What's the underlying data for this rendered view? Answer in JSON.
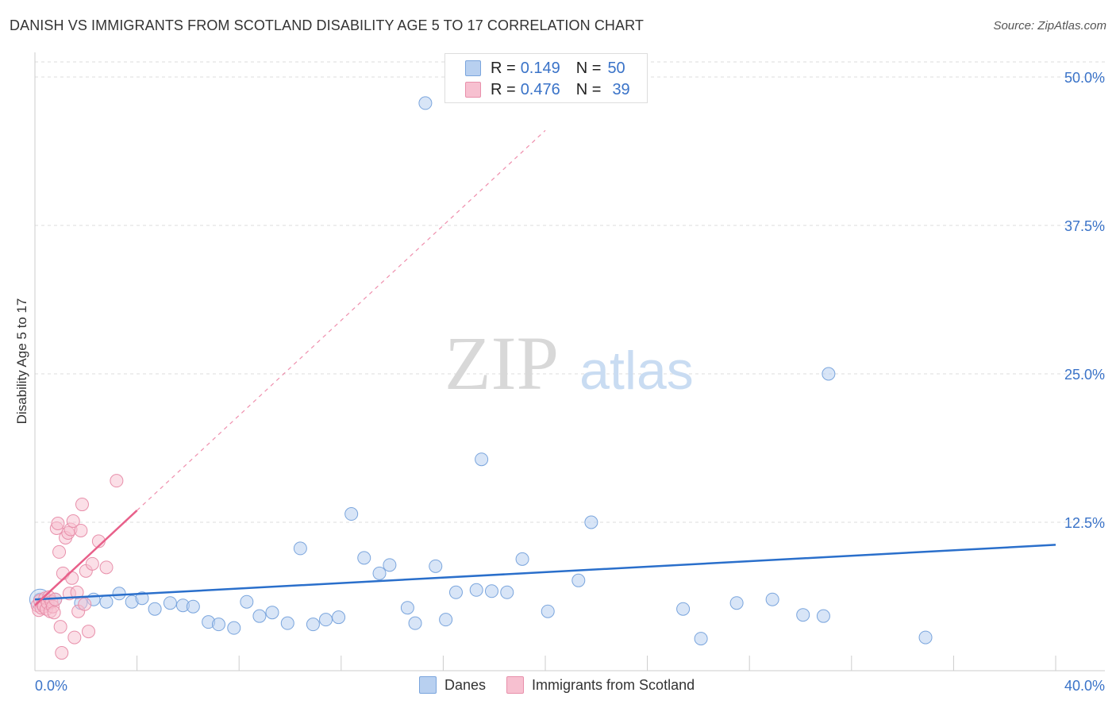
{
  "header": {
    "title": "DANISH VS IMMIGRANTS FROM SCOTLAND DISABILITY AGE 5 TO 17 CORRELATION CHART",
    "source": "Source: ZipAtlas.com"
  },
  "watermark": {
    "part1": "ZIP",
    "part2": "atlas"
  },
  "legend_top": {
    "rows": [
      {
        "r_label": "R = ",
        "r_value": "0.149",
        "n_label": "N = ",
        "n_value": "50"
      },
      {
        "r_label": "R = ",
        "r_value": "0.476",
        "n_label": "N = ",
        "n_value": "39"
      }
    ]
  },
  "colors": {
    "danes_fill": "#b8d0f0",
    "danes_stroke": "#7aa5dd",
    "danes_line": "#2a6fcb",
    "scot_fill": "#f7c0d0",
    "scot_stroke": "#e890ab",
    "scot_line": "#e8608a",
    "axis_text": "#3a73c8",
    "grid": "#dddddd"
  },
  "chart_data": {
    "type": "scatter",
    "title": "DANISH VS IMMIGRANTS FROM SCOTLAND DISABILITY AGE 5 TO 17 CORRELATION CHART",
    "xlabel": "",
    "ylabel": "Disability Age 5 to 17",
    "xlim": [
      0,
      40
    ],
    "ylim": [
      0,
      52.5
    ],
    "x_tick_labels": [
      "0.0%",
      "40.0%"
    ],
    "y_ticks": [
      12.5,
      25.0,
      37.5,
      50.0
    ],
    "y_tick_labels": [
      "12.5%",
      "25.0%",
      "37.5%",
      "50.0%"
    ],
    "grid": true,
    "series": [
      {
        "name": "Danes",
        "r": 0.149,
        "n": 50,
        "trend": {
          "x": [
            0,
            40
          ],
          "y": [
            6.0,
            10.6
          ],
          "dashed_extension": false
        },
        "points": [
          {
            "x": 0.2,
            "y": 6.0
          },
          {
            "x": 0.5,
            "y": 5.6
          },
          {
            "x": 0.8,
            "y": 6.0
          },
          {
            "x": 1.8,
            "y": 5.7
          },
          {
            "x": 2.3,
            "y": 6.0
          },
          {
            "x": 2.8,
            "y": 5.8
          },
          {
            "x": 3.3,
            "y": 6.5
          },
          {
            "x": 3.8,
            "y": 5.8
          },
          {
            "x": 4.2,
            "y": 6.1
          },
          {
            "x": 4.7,
            "y": 5.2
          },
          {
            "x": 5.3,
            "y": 5.7
          },
          {
            "x": 5.8,
            "y": 5.5
          },
          {
            "x": 6.2,
            "y": 5.4
          },
          {
            "x": 6.8,
            "y": 4.1
          },
          {
            "x": 7.2,
            "y": 3.9
          },
          {
            "x": 7.8,
            "y": 3.6
          },
          {
            "x": 8.3,
            "y": 5.8
          },
          {
            "x": 8.8,
            "y": 4.6
          },
          {
            "x": 9.3,
            "y": 4.9
          },
          {
            "x": 9.9,
            "y": 4.0
          },
          {
            "x": 10.4,
            "y": 10.3
          },
          {
            "x": 10.9,
            "y": 3.9
          },
          {
            "x": 11.4,
            "y": 4.3
          },
          {
            "x": 11.9,
            "y": 4.5
          },
          {
            "x": 12.4,
            "y": 13.2
          },
          {
            "x": 12.9,
            "y": 9.5
          },
          {
            "x": 13.5,
            "y": 8.2
          },
          {
            "x": 13.9,
            "y": 8.9
          },
          {
            "x": 14.6,
            "y": 5.3
          },
          {
            "x": 14.9,
            "y": 4.0
          },
          {
            "x": 15.3,
            "y": 47.8
          },
          {
            "x": 15.7,
            "y": 8.8
          },
          {
            "x": 16.1,
            "y": 4.3
          },
          {
            "x": 16.5,
            "y": 6.6
          },
          {
            "x": 17.3,
            "y": 6.8
          },
          {
            "x": 17.5,
            "y": 17.8
          },
          {
            "x": 17.9,
            "y": 6.7
          },
          {
            "x": 18.5,
            "y": 6.6
          },
          {
            "x": 19.1,
            "y": 9.4
          },
          {
            "x": 20.1,
            "y": 5.0
          },
          {
            "x": 21.3,
            "y": 7.6
          },
          {
            "x": 21.8,
            "y": 12.5
          },
          {
            "x": 25.4,
            "y": 5.2
          },
          {
            "x": 26.1,
            "y": 2.7
          },
          {
            "x": 27.5,
            "y": 5.7
          },
          {
            "x": 28.9,
            "y": 6.0
          },
          {
            "x": 30.1,
            "y": 4.7
          },
          {
            "x": 30.9,
            "y": 4.6
          },
          {
            "x": 31.1,
            "y": 25.0
          },
          {
            "x": 34.9,
            "y": 2.8
          }
        ]
      },
      {
        "name": "Immigrants from Scotland",
        "r": 0.476,
        "n": 39,
        "trend": {
          "x": [
            0,
            4.0
          ],
          "y": [
            5.5,
            13.5
          ],
          "dashed_extension": {
            "x": [
              4.0,
              20.0
            ],
            "y": [
              13.5,
              45.5
            ]
          }
        },
        "points": [
          {
            "x": 0.1,
            "y": 5.5
          },
          {
            "x": 0.15,
            "y": 5.1
          },
          {
            "x": 0.2,
            "y": 5.9
          },
          {
            "x": 0.25,
            "y": 5.3
          },
          {
            "x": 0.3,
            "y": 5.6
          },
          {
            "x": 0.35,
            "y": 5.4
          },
          {
            "x": 0.4,
            "y": 6.1
          },
          {
            "x": 0.45,
            "y": 5.2
          },
          {
            "x": 0.5,
            "y": 5.7
          },
          {
            "x": 0.55,
            "y": 6.2
          },
          {
            "x": 0.6,
            "y": 5.0
          },
          {
            "x": 0.65,
            "y": 5.8
          },
          {
            "x": 0.7,
            "y": 5.4
          },
          {
            "x": 0.75,
            "y": 4.9
          },
          {
            "x": 0.8,
            "y": 6.0
          },
          {
            "x": 0.85,
            "y": 12.0
          },
          {
            "x": 0.9,
            "y": 12.4
          },
          {
            "x": 0.95,
            "y": 10.0
          },
          {
            "x": 1.0,
            "y": 3.7
          },
          {
            "x": 1.05,
            "y": 1.5
          },
          {
            "x": 1.1,
            "y": 8.2
          },
          {
            "x": 1.2,
            "y": 11.2
          },
          {
            "x": 1.3,
            "y": 11.6
          },
          {
            "x": 1.35,
            "y": 6.5
          },
          {
            "x": 1.4,
            "y": 11.9
          },
          {
            "x": 1.45,
            "y": 7.8
          },
          {
            "x": 1.5,
            "y": 12.6
          },
          {
            "x": 1.55,
            "y": 2.8
          },
          {
            "x": 1.65,
            "y": 6.6
          },
          {
            "x": 1.7,
            "y": 5.0
          },
          {
            "x": 1.8,
            "y": 11.8
          },
          {
            "x": 1.85,
            "y": 14.0
          },
          {
            "x": 1.95,
            "y": 5.6
          },
          {
            "x": 2.0,
            "y": 8.4
          },
          {
            "x": 2.1,
            "y": 3.3
          },
          {
            "x": 2.25,
            "y": 9.0
          },
          {
            "x": 2.5,
            "y": 10.9
          },
          {
            "x": 2.8,
            "y": 8.7
          },
          {
            "x": 3.2,
            "y": 16.0
          }
        ]
      }
    ]
  },
  "bottom_legend": {
    "items": [
      "Danes",
      "Immigrants from Scotland"
    ]
  }
}
